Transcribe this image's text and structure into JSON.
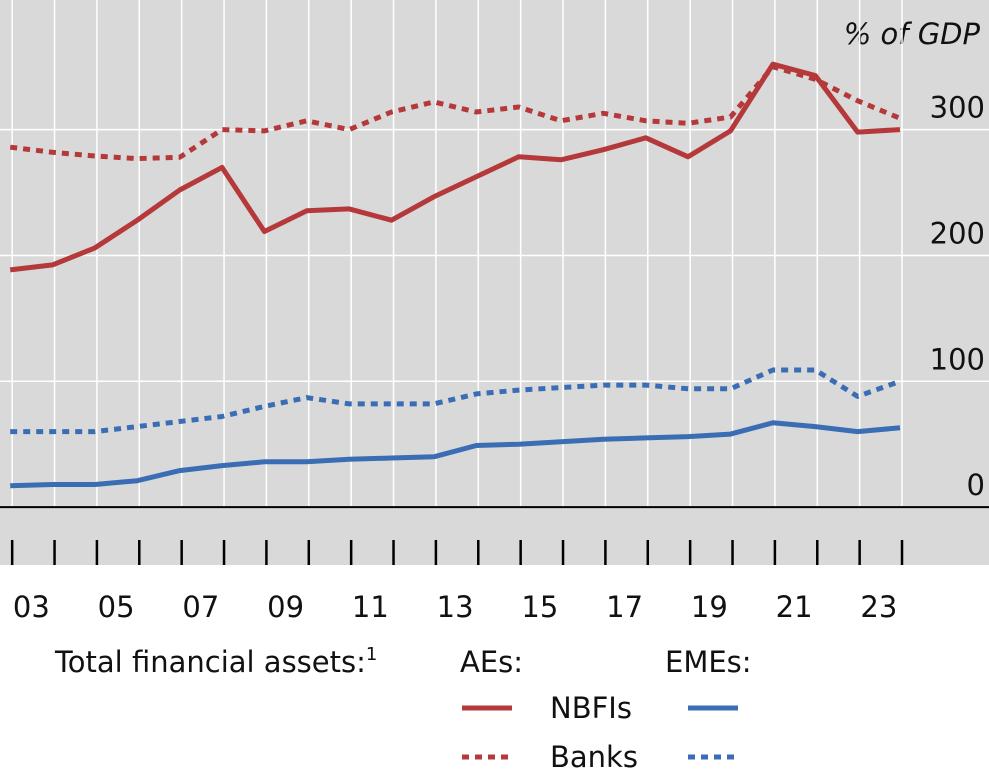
{
  "chart_data": {
    "type": "line",
    "y_unit": "% of GDP",
    "x": [
      2002,
      2003,
      2004,
      2005,
      2006,
      2007,
      2008,
      2009,
      2010,
      2011,
      2012,
      2013,
      2014,
      2015,
      2016,
      2017,
      2018,
      2019,
      2020,
      2021,
      2022,
      2023
    ],
    "xlim": [
      2001.76,
      2025.1
    ],
    "xticks": [
      {
        "value": 2003,
        "label": "03"
      },
      {
        "value": 2005,
        "label": "05"
      },
      {
        "value": 2007,
        "label": "07"
      },
      {
        "value": 2009,
        "label": "09"
      },
      {
        "value": 2011,
        "label": "11"
      },
      {
        "value": 2013,
        "label": "13"
      },
      {
        "value": 2015,
        "label": "15"
      },
      {
        "value": 2017,
        "label": "17"
      },
      {
        "value": 2019,
        "label": "19"
      },
      {
        "value": 2021,
        "label": "21"
      },
      {
        "value": 2023,
        "label": "23"
      }
    ],
    "ylim": [
      -46,
      403
    ],
    "yticks": [
      0,
      100,
      200,
      300
    ],
    "grid": true,
    "legend": {
      "title": "Total financial assets:",
      "footnote": "1",
      "groups": [
        "AEs:",
        "EMEs:"
      ],
      "rows": [
        "NBFIs",
        "Banks"
      ]
    },
    "series": [
      {
        "group": 0,
        "row": 0,
        "color": "#b5393a",
        "dash": false,
        "values": [
          188.5,
          192.5,
          206,
          228,
          252,
          270,
          219,
          235.5,
          237,
          228,
          246.6,
          262.5,
          278.4,
          276,
          284,
          293.5,
          278.4,
          299,
          352,
          343,
          298,
          300
        ]
      },
      {
        "group": 0,
        "row": 1,
        "color": "#b5393a",
        "dash": true,
        "values": [
          286,
          282,
          279,
          277,
          278,
          300,
          299,
          307,
          300,
          314,
          322,
          314,
          318,
          307,
          313,
          307,
          305,
          310,
          350,
          340,
          323,
          309
        ]
      },
      {
        "group": 1,
        "row": 0,
        "color": "#3b6db5",
        "dash": false,
        "values": [
          17,
          18,
          18,
          21,
          29,
          33,
          36,
          36,
          38,
          39,
          40,
          49,
          50,
          52,
          54,
          55,
          56,
          58,
          67,
          64,
          60,
          63
        ]
      },
      {
        "group": 1,
        "row": 1,
        "color": "#3b6db5",
        "dash": true,
        "values": [
          60,
          60,
          60,
          64,
          68,
          72,
          80,
          87,
          82,
          82,
          82,
          90,
          93,
          95,
          97,
          97,
          94,
          94,
          109,
          109,
          88,
          100
        ]
      }
    ]
  }
}
